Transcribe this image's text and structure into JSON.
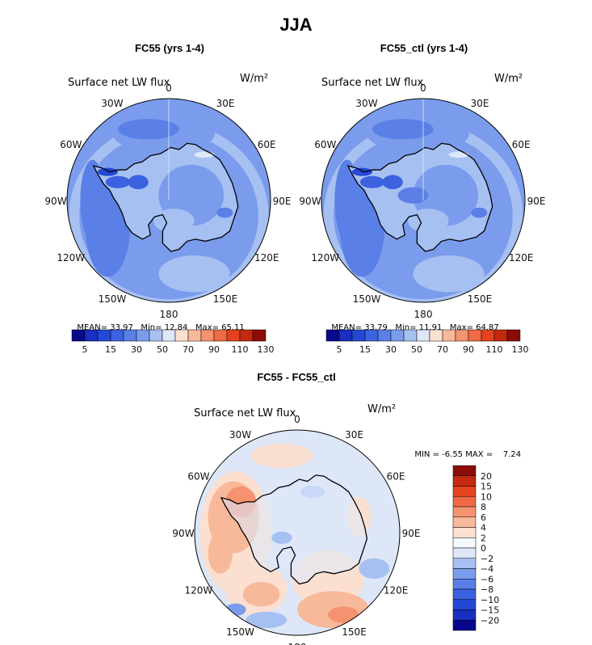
{
  "title": "JJA",
  "panels": [
    {
      "title": "FC55 (yrs 1-4)",
      "field": "Surface net LW flux",
      "units": "W/m²",
      "stats": {
        "mean_label": "MEAN=",
        "mean": "33.97",
        "min_label": "Min=",
        "min": "12.84",
        "max_label": "Max=",
        "max": "65.11"
      }
    },
    {
      "title": "FC55_ctl (yrs 1-4)",
      "field": "Surface net LW flux",
      "units": "W/m²",
      "stats": {
        "mean_label": "MEAN=",
        "mean": "33.79",
        "min_label": "Min=",
        "min": "11.91",
        "max_label": "Max=",
        "max": "64.87"
      }
    },
    {
      "title": "FC55 - FC55_ctl",
      "field": "Surface net LW flux",
      "units": "W/m²",
      "stats": {
        "min_label": "MIN =",
        "min": "-6.55",
        "max_label": "MAX =",
        "max": "7.24"
      }
    }
  ],
  "longitude_labels": [
    "0",
    "30E",
    "60E",
    "90E",
    "120E",
    "150E",
    "180",
    "150W",
    "120W",
    "90W",
    "60W",
    "30W"
  ],
  "colorbar_abs": {
    "colors": [
      "#08088c",
      "#1a2ebf",
      "#2448d6",
      "#3b63e0",
      "#5a7fe6",
      "#7b9cec",
      "#a7c0f2",
      "#dde7f8",
      "#fbe0d2",
      "#f8b99a",
      "#f59270",
      "#f06a45",
      "#e4431f",
      "#c42a12",
      "#8c0c08"
    ],
    "tick_labels": [
      "5",
      "15",
      "30",
      "50",
      "70",
      "90",
      "110",
      "130"
    ]
  },
  "colorbar_diff": {
    "colors": [
      "#8c0c08",
      "#c42a12",
      "#e4431f",
      "#f06a45",
      "#f59270",
      "#f8b99a",
      "#fbe0d2",
      "#f5f8ff",
      "#dde7f8",
      "#a7c0f2",
      "#7b9cec",
      "#5a7fe6",
      "#3b63e0",
      "#2448d6",
      "#1a2ebf",
      "#08088c"
    ],
    "tick_labels": [
      "20",
      "15",
      "10",
      "8",
      "6",
      "4",
      "2",
      "0",
      "−2",
      "−4",
      "−6",
      "−8",
      "−10",
      "−15",
      "−20"
    ]
  }
}
